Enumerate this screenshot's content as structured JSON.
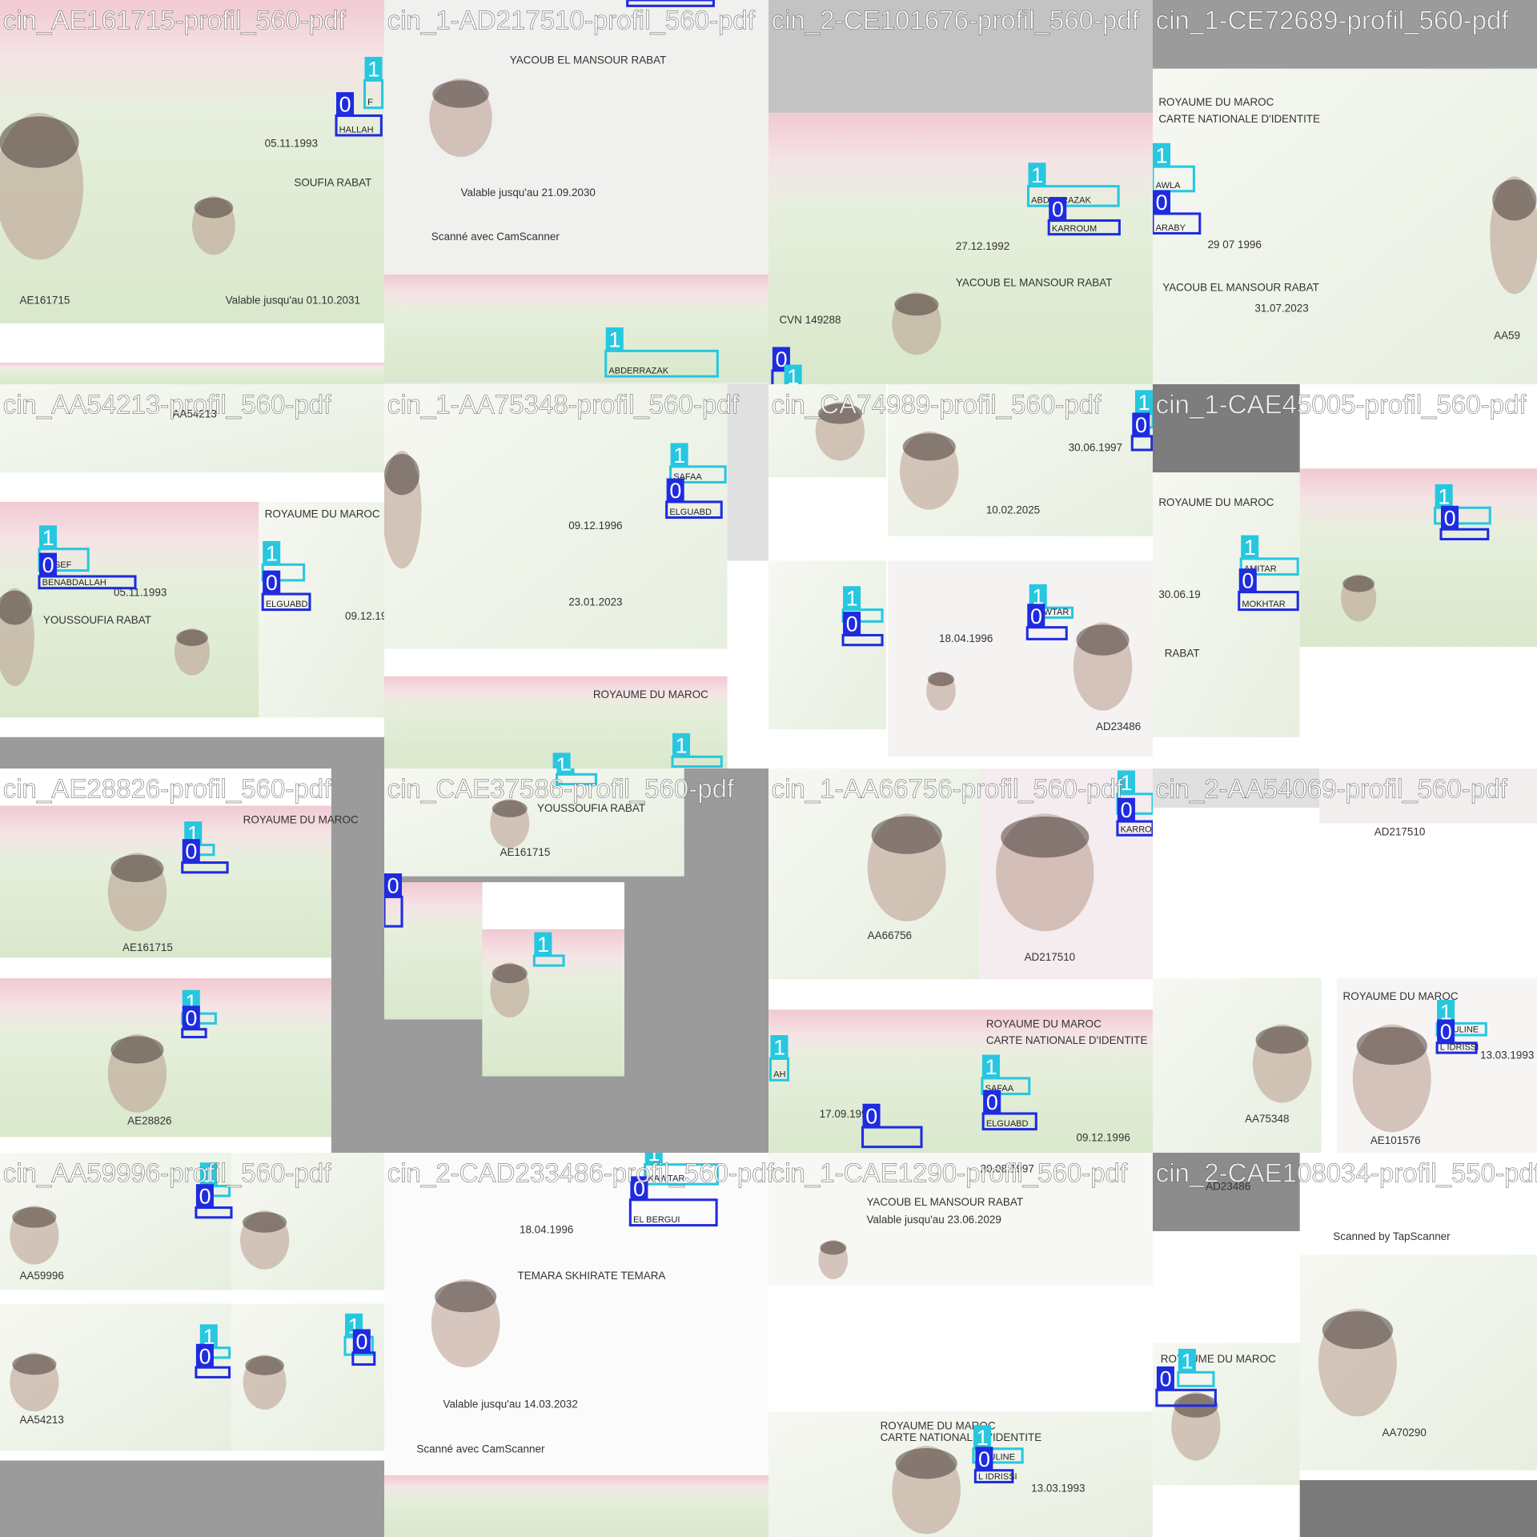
{
  "tiles": [
    {
      "title": "cin_AE161715-profil_560-pdf",
      "texts": [
        "05.11.1993",
        "AE161715",
        "SOUFIA RABAT",
        "Valable jusqu'au 01.10.2031"
      ],
      "boxes": [
        {
          "label": "1",
          "text": "F"
        },
        {
          "label": "0",
          "text": "HALLAH"
        }
      ]
    },
    {
      "title": "cin_1-AD217510-profil_560-pdf",
      "texts": [
        "YACOUB EL MANSOUR RABAT",
        "Valable jusqu'au 21.09.2030",
        "Scanné avec CamScanner"
      ],
      "boxes": [
        {
          "label": "0"
        },
        {
          "label": "1",
          "text": "ABDERRAZAK"
        }
      ]
    },
    {
      "title": "cin_2-CE101676-profil_560-pdf",
      "texts": [
        "27.12.1992",
        "YACOUB EL MANSOUR RABAT",
        "CVN 149288"
      ],
      "boxes": [
        {
          "label": "1",
          "text": "ABDERRAZAK"
        },
        {
          "label": "0",
          "text": "KARROUM"
        },
        {
          "label": "0"
        },
        {
          "label": "1"
        }
      ]
    },
    {
      "title": "cin_1-CE72689-profil_560-pdf",
      "texts": [
        "ROYAUME DU MAROC",
        "CARTE NATIONALE D'IDENTITE",
        "29 07 1996",
        "YACOUB EL MANSOUR RABAT",
        "31.07.2023",
        "AA59"
      ],
      "boxes": [
        {
          "label": "1",
          "text": "AWLA"
        },
        {
          "label": "0",
          "text": "ARABY"
        }
      ]
    },
    {
      "title": "cin_AA54213-profil_560-pdf",
      "texts": [
        "AA54213",
        "ROYAUME DU MAROC",
        "05.11.1993",
        "YOUSSOUFIA RABAT",
        "09.12.19"
      ],
      "boxes": [
        {
          "label": "1",
          "text": "USSEF"
        },
        {
          "label": "0",
          "text": "BENABDALLAH"
        },
        {
          "label": "1",
          "text": "AA"
        },
        {
          "label": "0",
          "text": "ELGUABD"
        }
      ]
    },
    {
      "title": "cin_1-AA75348-profil_560-pdf",
      "texts": [
        "09.12.1996",
        "23.01.2023",
        "ROYAUME DU MAROC"
      ],
      "boxes": [
        {
          "label": "1",
          "text": "SAFAA"
        },
        {
          "label": "0",
          "text": "ELGUABD"
        },
        {
          "label": "1"
        },
        {
          "label": "1"
        }
      ]
    },
    {
      "title": "cin_CA74989-profil_560-pdf",
      "texts": [
        "30.06.1997",
        "10.02.2025",
        "AD23486",
        "18.04.1996"
      ],
      "boxes": [
        {
          "label": "1"
        },
        {
          "label": "0"
        },
        {
          "label": "1"
        },
        {
          "label": "0"
        },
        {
          "label": "1",
          "text": "KAWTAR"
        },
        {
          "label": "0"
        }
      ]
    },
    {
      "title": "cin_1-CAE45005-profil_560-pdf",
      "texts": [
        "ROYAUME DU MAROC",
        "RABAT",
        "30.06.19"
      ],
      "boxes": [
        {
          "label": "1"
        },
        {
          "label": "0"
        },
        {
          "label": "1",
          "text": "AMITAR"
        },
        {
          "label": "0",
          "text": "MOKHTAR"
        }
      ]
    },
    {
      "title": "cin_AE28826-profil_560-pdf",
      "texts": [
        "ROYAUME DU MAROC",
        "AE161715",
        "AE28826"
      ],
      "boxes": [
        {
          "label": "1"
        },
        {
          "label": "0"
        },
        {
          "label": "1"
        },
        {
          "label": "0"
        }
      ]
    },
    {
      "title": "cin_CAE37586-profil_560-pdf",
      "texts": [
        "AE161715",
        "YOUSSOUFIA RABAT"
      ],
      "boxes": [
        {
          "label": "1"
        },
        {
          "label": "0"
        },
        {
          "label": "1"
        }
      ]
    },
    {
      "title": "cin_1-AA66756-profil_560-pdf",
      "texts": [
        "AA66756",
        "AD217510",
        "ROYAUME DU MAROC",
        "CARTE NATIONALE D'IDENTITE",
        "17.09.1994",
        "09.12.1996"
      ],
      "boxes": [
        {
          "label": "1"
        },
        {
          "label": "0",
          "text": "KARRO"
        },
        {
          "label": "1",
          "text": "AH"
        },
        {
          "label": "1",
          "text": "SAFAA"
        },
        {
          "label": "0",
          "text": "ELGUABD"
        },
        {
          "label": "0"
        }
      ]
    },
    {
      "title": "cin_2-AA54069-profil_560-pdf",
      "texts": [
        "AD217510",
        "ROYAUME DU MAROC",
        "AA75348",
        "AE101576",
        "13.03.1993"
      ],
      "boxes": [
        {
          "label": "1",
          "text": "BOULINE"
        },
        {
          "label": "0",
          "text": "L IDRISSI"
        }
      ]
    },
    {
      "title": "cin_AA59996-profil_560-pdf",
      "texts": [
        "AA59996",
        "AA54213"
      ],
      "boxes": [
        {
          "label": "1"
        },
        {
          "label": "0"
        },
        {
          "label": "1"
        },
        {
          "label": "0"
        },
        {
          "label": "1"
        },
        {
          "label": "0"
        }
      ]
    },
    {
      "title": "cin_2-CAD233486-profil_560-pdf",
      "texts": [
        "18.04.1996",
        "TEMARA SKHIRATE TEMARA",
        "Valable jusqu'au 14.03.2032",
        "Scanné avec CamScanner"
      ],
      "boxes": [
        {
          "label": "1",
          "text": "KAWTAR"
        },
        {
          "label": "0",
          "text": "EL BERGUI"
        }
      ]
    },
    {
      "title": "cin_1-CAE1290-profil_560-pdf",
      "texts": [
        "20.08.1997",
        "YACOUB EL MANSOUR RABAT",
        "Valable jusqu'au 23.06.2029",
        "ROYAUME DU MAROC",
        "CARTE NATIONALE D'IDENTITE",
        "13.03.1993"
      ],
      "boxes": [
        {
          "label": "1",
          "text": "BOULINE"
        },
        {
          "label": "0",
          "text": "L IDRISSI"
        }
      ]
    },
    {
      "title": "cin_2-CAE108034-profil_550-pdf",
      "texts": [
        "AD23486",
        "AA70290",
        "ROYAUME DU MAROC",
        "Scanned by TapScanner"
      ],
      "boxes": [
        {
          "label": "1"
        },
        {
          "label": "0"
        }
      ]
    }
  ]
}
